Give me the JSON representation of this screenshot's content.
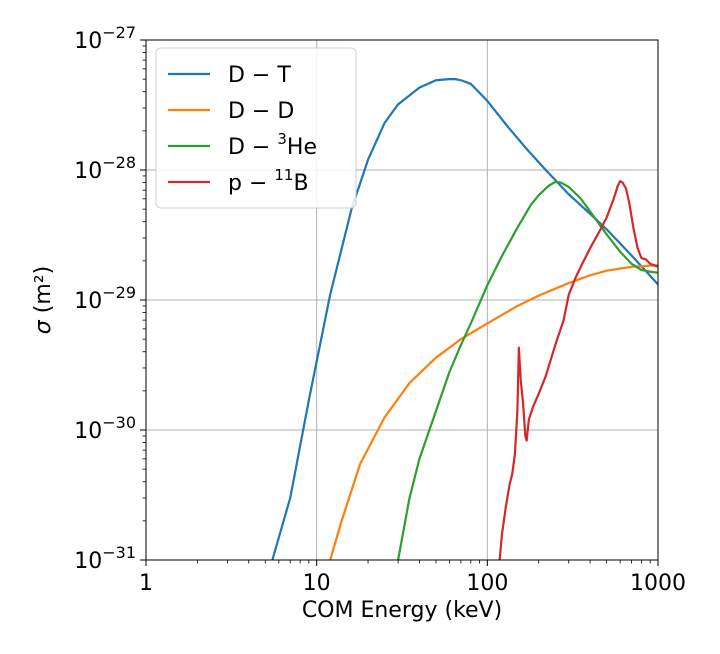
{
  "chart_data": {
    "type": "line",
    "xscale": "log",
    "yscale": "log",
    "xlim": [
      1,
      1000
    ],
    "ylim": [
      1e-31,
      1e-27
    ],
    "grid": true,
    "xlabel": "COM Energy (keV)",
    "ylabel": "σ (m²)",
    "x_ticks": [
      "1",
      "10",
      "100",
      "1000"
    ],
    "y_ticks": [
      {
        "base": "10",
        "exp": "−31",
        "value": 1e-31
      },
      {
        "base": "10",
        "exp": "−30",
        "value": 1e-30
      },
      {
        "base": "10",
        "exp": "−29",
        "value": 1e-29
      },
      {
        "base": "10",
        "exp": "−28",
        "value": 1e-28
      },
      {
        "base": "10",
        "exp": "−27",
        "value": 1e-27
      }
    ],
    "legend_position": "top-left",
    "series": [
      {
        "name": "D − T",
        "label": {
          "main": "D − T",
          "sup": "",
          "tail": ""
        },
        "color": "#1f77b4",
        "x": [
          5.5,
          7,
          9,
          12,
          16,
          20,
          25,
          30,
          40,
          50,
          60,
          65,
          70,
          80,
          100,
          130,
          170,
          220,
          300,
          400,
          500,
          700,
          1000
        ],
        "y": [
          1e-31,
          3e-31,
          1.7e-30,
          1.1e-29,
          5e-29,
          1.2e-28,
          2.3e-28,
          3.2e-28,
          4.3e-28,
          4.9e-28,
          5e-28,
          5e-28,
          4.9e-28,
          4.6e-28,
          3.4e-28,
          2.2e-28,
          1.45e-28,
          1e-28,
          6.5e-29,
          4.6e-29,
          3.5e-29,
          2.2e-29,
          1.32e-29
        ]
      },
      {
        "name": "D − D",
        "label": {
          "main": "D − D",
          "sup": "",
          "tail": ""
        },
        "color": "#ff7f0e",
        "x": [
          12,
          14,
          18,
          25,
          35,
          50,
          70,
          100,
          150,
          200,
          300,
          400,
          500,
          700,
          1000
        ],
        "y": [
          1e-31,
          2e-31,
          5.5e-31,
          1.25e-30,
          2.3e-30,
          3.6e-30,
          5e-30,
          6.6e-30,
          9e-30,
          1.08e-29,
          1.35e-29,
          1.55e-29,
          1.68e-29,
          1.8e-29,
          1.85e-29
        ]
      },
      {
        "name": "D − 3He",
        "label": {
          "main": "D − ",
          "sup": "3",
          "tail": "He"
        },
        "color": "#2ca02c",
        "x": [
          30,
          35,
          40,
          50,
          60,
          70,
          80,
          100,
          120,
          150,
          180,
          200,
          230,
          250,
          270,
          300,
          350,
          400,
          500,
          600,
          700,
          800,
          900,
          1000
        ],
        "y": [
          1e-31,
          3e-31,
          6e-31,
          1.4e-30,
          2.8e-30,
          4.5e-30,
          6.6e-30,
          1.3e-29,
          2.1e-29,
          3.6e-29,
          5.4e-29,
          6.4e-29,
          7.6e-29,
          8.1e-29,
          8e-29,
          7.4e-29,
          6.1e-29,
          4.8e-29,
          3.2e-29,
          2.35e-29,
          1.9e-29,
          1.7e-29,
          1.65e-29,
          1.62e-29
        ]
      },
      {
        "name": "p − 11B",
        "label": {
          "main": "p − ",
          "sup": "11",
          "tail": "B"
        },
        "color": "#d62728",
        "x": [
          118,
          122,
          128,
          135,
          140,
          145,
          150,
          153,
          157,
          162,
          167,
          170,
          175,
          185,
          200,
          220,
          250,
          280,
          300,
          330,
          360,
          400,
          450,
          500,
          550,
          580,
          600,
          620,
          650,
          680,
          720,
          760,
          800,
          850,
          900,
          950,
          1000
        ],
        "y": [
          1e-31,
          1.6e-31,
          2.5e-31,
          3.8e-31,
          4.6e-31,
          6.5e-31,
          1.4e-30,
          4.3e-30,
          2.4e-30,
          1.6e-30,
          9e-31,
          8.3e-31,
          1.2e-30,
          1.5e-30,
          1.9e-30,
          2.6e-30,
          4.5e-30,
          7e-30,
          1.1e-29,
          1.5e-29,
          1.9e-29,
          2.5e-29,
          3.3e-29,
          4.3e-29,
          6e-29,
          7.5e-29,
          8.2e-29,
          8e-29,
          7.2e-29,
          5.5e-29,
          3.5e-29,
          2.5e-29,
          2.1e-29,
          2.05e-29,
          1.9e-29,
          1.85e-29,
          1.8e-29
        ]
      }
    ]
  }
}
